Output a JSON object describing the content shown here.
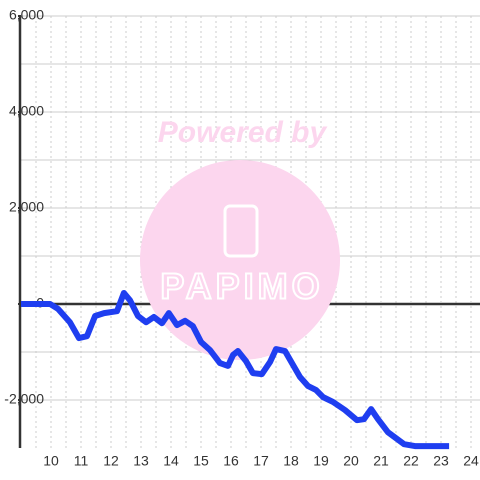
{
  "chart_data": {
    "type": "line",
    "annotations": [
      "Powered by",
      "PAPIMO"
    ],
    "x": [
      9.0,
      9.97,
      10.23,
      10.63,
      10.93,
      11.2,
      11.47,
      11.77,
      12.2,
      12.43,
      12.63,
      12.9,
      13.17,
      13.43,
      13.7,
      13.93,
      14.2,
      14.47,
      14.73,
      15.0,
      15.3,
      15.63,
      15.9,
      16.07,
      16.23,
      16.5,
      16.73,
      17.03,
      17.3,
      17.5,
      17.8,
      18.03,
      18.3,
      18.57,
      18.83,
      19.07,
      19.4,
      19.8,
      20.2,
      20.43,
      20.67,
      20.9,
      21.23,
      21.77,
      22.13,
      23.27
    ],
    "series": [
      {
        "color": "#1f3ef0",
        "values": [
          0,
          0,
          -100,
          -380,
          -710,
          -670,
          -250,
          -190,
          -150,
          230,
          80,
          -250,
          -380,
          -270,
          -400,
          -190,
          -440,
          -350,
          -460,
          -790,
          -960,
          -1230,
          -1290,
          -1060,
          -980,
          -1190,
          -1440,
          -1460,
          -1210,
          -940,
          -980,
          -1230,
          -1520,
          -1710,
          -1790,
          -1940,
          -2040,
          -2210,
          -2420,
          -2400,
          -2190,
          -2400,
          -2670,
          -2920,
          -2960,
          -2960
        ]
      }
    ],
    "xlim": [
      9,
      24.3
    ],
    "xticks": [
      10,
      11,
      12,
      13,
      14,
      15,
      16,
      17,
      18,
      19,
      20,
      21,
      22,
      23,
      24
    ],
    "xgrid_minor": [
      9.5,
      10.5,
      11.5,
      12.5,
      13.5,
      14.5,
      15.5,
      16.5,
      17.5,
      18.5,
      19.5,
      20.5,
      21.5,
      22.5,
      23.5
    ],
    "ylim": [
      -3000,
      6000
    ],
    "yticks": [
      {
        "value": 6000,
        "label": "6,000"
      },
      {
        "value": 4000,
        "label": "4,000"
      },
      {
        "value": 2000,
        "label": "2,000"
      },
      0,
      {
        "value": -2000,
        "label": "-2,000"
      }
    ],
    "ygrid_minor": [
      5000,
      3000,
      1000,
      -1000
    ],
    "grid": true
  }
}
